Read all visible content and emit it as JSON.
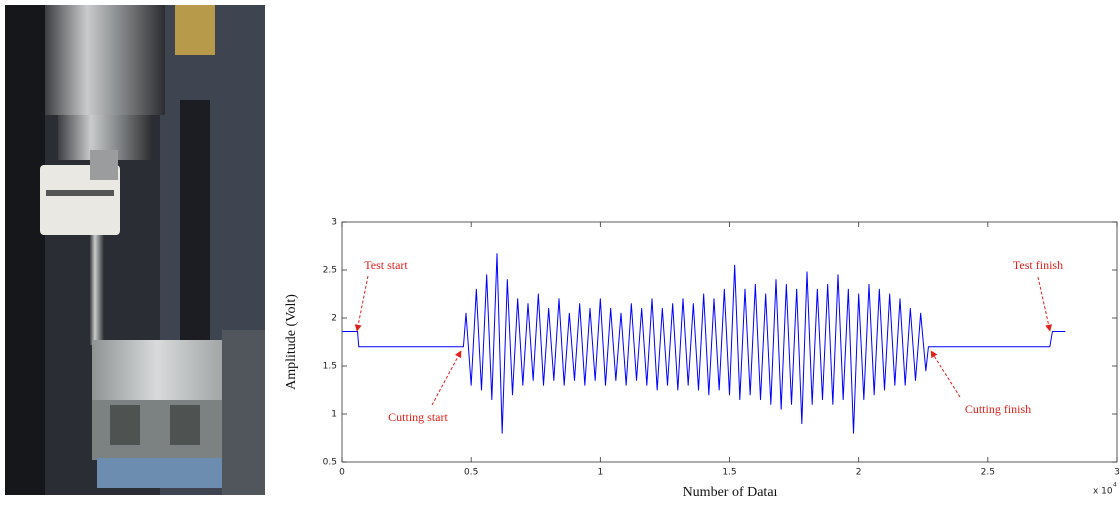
{
  "chart_data": {
    "type": "line",
    "x_label": "Number of Dataı",
    "y_label": "Amplitude (Volt)",
    "x_multiplier": "x 10",
    "x_multiplier_exponent": "4",
    "annotations": [
      "Test start",
      "Test finish",
      "Cutting start",
      "Cutting finish"
    ],
    "xlim": [
      0,
      3
    ],
    "xticks": [
      0,
      0.5,
      1,
      1.5,
      2,
      2.5,
      3
    ],
    "ylim": [
      0.5,
      3
    ],
    "yticks": [
      0.5,
      1,
      1.5,
      2,
      2.5,
      3
    ],
    "grid": false,
    "series": [
      {
        "color": "#0000ff",
        "x": [
          0,
          0.06,
          0.065,
          0.47,
          0.48,
          0.5,
          0.52,
          0.54,
          0.56,
          0.58,
          0.6,
          0.62,
          0.64,
          0.66,
          0.68,
          0.7,
          0.72,
          0.74,
          0.76,
          0.78,
          0.8,
          0.82,
          0.84,
          0.86,
          0.88,
          0.9,
          0.92,
          0.94,
          0.96,
          0.98,
          1.0,
          1.02,
          1.04,
          1.06,
          1.08,
          1.1,
          1.12,
          1.14,
          1.16,
          1.18,
          1.2,
          1.22,
          1.24,
          1.26,
          1.28,
          1.3,
          1.32,
          1.34,
          1.36,
          1.38,
          1.4,
          1.42,
          1.44,
          1.46,
          1.48,
          1.5,
          1.52,
          1.54,
          1.56,
          1.58,
          1.6,
          1.62,
          1.64,
          1.66,
          1.68,
          1.7,
          1.72,
          1.74,
          1.76,
          1.78,
          1.8,
          1.82,
          1.84,
          1.86,
          1.88,
          1.9,
          1.92,
          1.94,
          1.96,
          1.98,
          2.0,
          2.02,
          2.04,
          2.06,
          2.08,
          2.1,
          2.12,
          2.14,
          2.16,
          2.18,
          2.2,
          2.22,
          2.24,
          2.26,
          2.27,
          2.74,
          2.75,
          2.8
        ],
        "values": [
          1.86,
          1.86,
          1.7,
          1.7,
          2.05,
          1.3,
          2.3,
          1.25,
          2.45,
          1.15,
          2.67,
          0.8,
          2.4,
          1.2,
          2.2,
          1.3,
          2.15,
          1.35,
          2.25,
          1.3,
          2.1,
          1.35,
          2.2,
          1.3,
          2.05,
          1.35,
          2.15,
          1.3,
          2.1,
          1.35,
          2.2,
          1.3,
          2.1,
          1.35,
          2.05,
          1.3,
          2.15,
          1.35,
          2.1,
          1.3,
          2.2,
          1.25,
          2.1,
          1.3,
          2.15,
          1.25,
          2.2,
          1.3,
          2.15,
          1.25,
          2.25,
          1.2,
          2.2,
          1.25,
          2.3,
          1.2,
          2.55,
          1.15,
          2.3,
          1.2,
          2.35,
          1.15,
          2.25,
          1.1,
          2.4,
          1.05,
          2.35,
          1.1,
          2.3,
          0.9,
          2.48,
          1.1,
          2.3,
          1.15,
          2.35,
          1.1,
          2.45,
          1.15,
          2.3,
          0.8,
          2.25,
          1.15,
          2.35,
          1.2,
          2.3,
          1.25,
          2.25,
          1.3,
          2.2,
          1.3,
          2.1,
          1.35,
          2.05,
          1.45,
          1.7,
          1.7,
          1.86,
          1.86
        ]
      }
    ]
  }
}
